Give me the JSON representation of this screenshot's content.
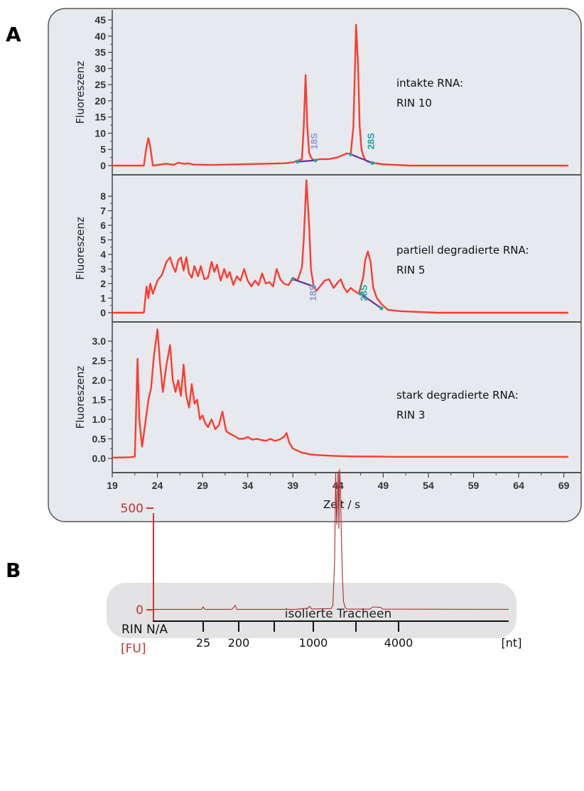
{
  "figure": {
    "panel_a_label": "A",
    "panel_b_label": "B"
  },
  "colors": {
    "trace": "#ff3b2e",
    "baseline": "#6a2aa8",
    "label_18s": "#8a9ad8",
    "label_28s": "#1aa8a0",
    "panel_bg": "#e6eaee",
    "trace_b": "#b02a2a",
    "axis_b": "#d4342c"
  },
  "chart_data": [
    {
      "type": "line",
      "panel": "A-top",
      "ylabel": "Fluoreszenz",
      "annotation": [
        "intakte RNA:",
        "RIN 10"
      ],
      "yticks": [
        "0",
        "5",
        "10",
        "15",
        "20",
        "25",
        "30",
        "35",
        "40",
        "45"
      ],
      "ylim": [
        -2,
        47
      ],
      "xlim": [
        19,
        69.5
      ],
      "peak_labels": [
        {
          "text": "18S",
          "x": 41.3,
          "y": 5
        },
        {
          "text": "28S",
          "x": 47.6,
          "y": 5
        }
      ],
      "baselines": [
        [
          [
            39.5,
            1.2
          ],
          [
            41.5,
            1.6
          ]
        ],
        [
          [
            45.4,
            3.5
          ],
          [
            47.8,
            0.8
          ]
        ]
      ],
      "series": [
        {
          "x": [
            19,
            22.5,
            22.8,
            23,
            23.2,
            23.5,
            25,
            25.8,
            26.3,
            27,
            27.4,
            28,
            30,
            35,
            38,
            39,
            40,
            40.2,
            40.4,
            40.6,
            40.8,
            41,
            41.3,
            42,
            43,
            44,
            45,
            45.4,
            45.7,
            46,
            46.2,
            46.4,
            46.6,
            46.8,
            47,
            47.3,
            48,
            49,
            52,
            55,
            60,
            65,
            69.5
          ],
          "y": [
            0,
            0,
            6,
            8.5,
            6,
            0,
            0.6,
            0.2,
            0.9,
            0.5,
            0.7,
            0.3,
            0.2,
            0.5,
            0.7,
            1,
            2,
            12,
            28,
            12,
            4,
            2.5,
            1.6,
            2,
            2,
            2.6,
            3.8,
            3.5,
            12,
            43.5,
            32,
            12,
            5,
            3,
            1.8,
            1.2,
            0.8,
            0.4,
            0,
            0,
            0,
            0,
            0
          ]
        }
      ]
    },
    {
      "type": "line",
      "panel": "A-middle",
      "ylabel": "Fluoreszenz",
      "annotation": [
        "partiell degradierte RNA:",
        "RIN 5"
      ],
      "yticks": [
        "0",
        "1",
        "2",
        "3",
        "4",
        "5",
        "6",
        "7",
        "8"
      ],
      "ylim": [
        -0.5,
        9
      ],
      "xlim": [
        19,
        69.5
      ],
      "peak_labels": [
        {
          "text": "18S",
          "x": 41.2,
          "y": 0.8
        },
        {
          "text": "28S",
          "x": 46.8,
          "y": 0.8
        }
      ],
      "baselines": [
        [
          [
            39,
            2.3
          ],
          [
            41.3,
            1.8
          ]
        ],
        [
          [
            46.5,
            1.3
          ],
          [
            48.8,
            0.3
          ]
        ]
      ],
      "series": [
        {
          "x": [
            19,
            22.5,
            22.8,
            23,
            23.2,
            23.5,
            24,
            24.5,
            25,
            25.4,
            25.7,
            26,
            26.3,
            26.6,
            26.9,
            27.2,
            27.5,
            27.8,
            28.1,
            28.5,
            28.8,
            29.2,
            29.6,
            30,
            30.3,
            30.6,
            31,
            31.4,
            31.7,
            32,
            32.4,
            32.8,
            33.2,
            33.6,
            34,
            34.4,
            34.8,
            35.2,
            35.6,
            36,
            36.4,
            36.8,
            37.2,
            37.6,
            38,
            38.5,
            39,
            39.5,
            40,
            40.2,
            40.5,
            40.8,
            41,
            41.3,
            41.6,
            42,
            42.5,
            43,
            43.5,
            44,
            44.3,
            44.6,
            45,
            45.4,
            45.8,
            46.3,
            46.8,
            47,
            47.3,
            47.6,
            47.9,
            48.3,
            48.8,
            49.5,
            51,
            55,
            60,
            65,
            69.5
          ],
          "y": [
            0,
            0,
            1.8,
            1,
            2,
            1.3,
            2.2,
            2.6,
            3.5,
            3.8,
            3.2,
            2.8,
            3.6,
            3.8,
            2.9,
            3.8,
            2.7,
            2.4,
            3.2,
            2.5,
            3.2,
            2.3,
            2.4,
            3.5,
            2.8,
            3.3,
            2.2,
            3.0,
            2.4,
            2.8,
            1.9,
            2.5,
            2.2,
            3.0,
            2.2,
            1.8,
            2.2,
            1.9,
            2.7,
            2.0,
            2.1,
            1.8,
            3.0,
            2.3,
            2.0,
            1.9,
            2.4,
            2.2,
            3.1,
            5,
            9.1,
            6,
            3,
            1.8,
            1.5,
            1.8,
            2.2,
            2.3,
            1.7,
            2.1,
            2.3,
            1.8,
            1.4,
            1.7,
            1.5,
            1.3,
            2.5,
            3.6,
            4.2,
            3.5,
            1.7,
            1.0,
            0.6,
            0.2,
            0.1,
            0,
            0,
            0,
            0
          ]
        }
      ]
    },
    {
      "type": "line",
      "panel": "A-bottom",
      "ylabel": "Fluoreszenz",
      "annotation": [
        "stark degradierte RNA:",
        "RIN 3"
      ],
      "yticks": [
        "0.0",
        "0.5",
        "1.0",
        "1.5",
        "2.0",
        "2.5",
        "3.0"
      ],
      "ylim": [
        -0.1,
        3.5
      ],
      "xlim": [
        19,
        69.5
      ],
      "xticks": [
        "19",
        "24",
        "29",
        "34",
        "39",
        "44",
        "49",
        "54",
        "59",
        "64",
        "69"
      ],
      "xlabel": "Zeit / s",
      "series": [
        {
          "x": [
            19,
            21,
            21.5,
            21.8,
            22,
            22.3,
            22.6,
            23,
            23.3,
            23.6,
            24,
            24.3,
            24.6,
            25,
            25.4,
            25.7,
            26,
            26.3,
            26.6,
            26.9,
            27.2,
            27.5,
            27.8,
            28.1,
            28.4,
            28.7,
            29,
            29.3,
            29.6,
            30,
            30.4,
            30.8,
            31.2,
            31.6,
            31.9,
            32.3,
            32.7,
            33,
            33.5,
            34,
            34.5,
            35,
            35.5,
            36,
            36.5,
            37,
            37.5,
            38,
            38.3,
            38.6,
            39,
            40,
            41,
            42,
            44,
            46,
            48,
            50,
            55,
            60,
            65,
            69.5
          ],
          "y": [
            0.02,
            0.03,
            0.05,
            2.55,
            1.0,
            0.3,
            0.8,
            1.5,
            1.8,
            2.6,
            3.3,
            2.4,
            1.7,
            2.4,
            2.9,
            2.0,
            1.7,
            2.0,
            1.6,
            2.4,
            1.6,
            1.3,
            1.9,
            1.4,
            1.5,
            1.0,
            1.1,
            0.9,
            0.8,
            1.0,
            0.75,
            0.85,
            1.2,
            0.7,
            0.65,
            0.6,
            0.55,
            0.5,
            0.5,
            0.55,
            0.48,
            0.5,
            0.47,
            0.45,
            0.5,
            0.45,
            0.48,
            0.55,
            0.65,
            0.4,
            0.25,
            0.15,
            0.1,
            0.08,
            0.06,
            0.05,
            0.05,
            0.04,
            0.04,
            0.04,
            0.04,
            0.04
          ]
        }
      ]
    },
    {
      "type": "line",
      "panel": "B",
      "title": "isolierte Tracheen",
      "rin_label": "RIN N/A",
      "ylabel": "[FU]",
      "yticks": [
        {
          "label": "0",
          "value": 0
        },
        {
          "label": "500",
          "value": 500
        }
      ],
      "ylim": [
        -20,
        760
      ],
      "xlim": [
        0,
        100
      ],
      "xunit": "[nt]",
      "xticks": [
        {
          "label": "25",
          "x": 14
        },
        {
          "label": "200",
          "x": 24
        },
        {
          "label": "",
          "x": 34
        },
        {
          "label": "1000",
          "x": 45
        },
        {
          "label": "",
          "x": 57
        },
        {
          "label": "4000",
          "x": 69
        }
      ],
      "series": [
        {
          "x": [
            0,
            13.5,
            14,
            14.5,
            22,
            22.7,
            23,
            23.5,
            40,
            43.5,
            44,
            44.5,
            50,
            50.5,
            51,
            51.3,
            51.6,
            52,
            52.2,
            52.4,
            52.6,
            52.9,
            53.2,
            53.5,
            54,
            54.5,
            55,
            61,
            61.5,
            62,
            64,
            64.5,
            100
          ],
          "y": [
            2,
            2,
            14,
            2,
            2,
            14,
            22,
            2,
            2,
            8,
            18,
            4,
            6,
            20,
            240,
            670,
            420,
            680,
            400,
            690,
            620,
            360,
            160,
            40,
            10,
            4,
            3,
            3,
            12,
            14,
            12,
            3,
            2
          ]
        }
      ]
    }
  ]
}
